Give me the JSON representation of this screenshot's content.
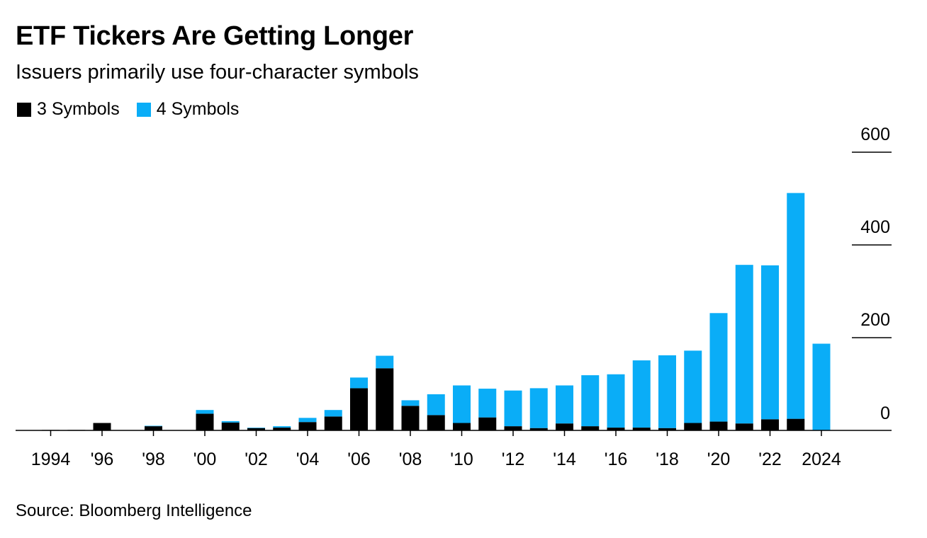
{
  "title": "ETF Tickers Are Getting Longer",
  "subtitle": "Issuers primarily use four-character symbols",
  "source": "Source: Bloomberg Intelligence",
  "legend": [
    {
      "label": "3 Symbols",
      "color": "#000000"
    },
    {
      "label": "4 Symbols",
      "color": "#0AADF7"
    }
  ],
  "chart_data": {
    "type": "bar",
    "stacked": true,
    "title": "ETF Tickers Are Getting Longer",
    "subtitle": "Issuers primarily use four-character symbols",
    "xlabel": "",
    "ylabel": "",
    "ylim": [
      0,
      600
    ],
    "yticks": [
      "0",
      "200",
      "400",
      "600"
    ],
    "x_tick_labels": [
      "1994",
      "'96",
      "'98",
      "'00",
      "'02",
      "'04",
      "'06",
      "'08",
      "'10",
      "'12",
      "'14",
      "'16",
      "'18",
      "'20",
      "'22",
      "2024"
    ],
    "categories": [
      "1994",
      "1995",
      "1996",
      "1997",
      "1998",
      "1999",
      "2000",
      "2001",
      "2002",
      "2003",
      "2004",
      "2005",
      "2006",
      "2007",
      "2008",
      "2009",
      "2010",
      "2011",
      "2012",
      "2013",
      "2014",
      "2015",
      "2016",
      "2017",
      "2018",
      "2019",
      "2020",
      "2021",
      "2022",
      "2023",
      "2024"
    ],
    "series": [
      {
        "name": "3 Symbols",
        "color": "#000000",
        "values": [
          1,
          1,
          16,
          0,
          9,
          0,
          36,
          17,
          5,
          6,
          18,
          30,
          91,
          134,
          53,
          33,
          16,
          28,
          9,
          5,
          15,
          9,
          6,
          6,
          5,
          16,
          19,
          15,
          24,
          25,
          0
        ]
      },
      {
        "name": "4 Symbols",
        "color": "#0AADF7",
        "values": [
          0,
          0,
          0,
          0,
          1,
          0,
          8,
          3,
          1,
          3,
          9,
          14,
          23,
          27,
          12,
          45,
          81,
          62,
          77,
          86,
          82,
          110,
          115,
          145,
          157,
          156,
          234,
          342,
          332,
          487,
          187
        ]
      }
    ]
  }
}
